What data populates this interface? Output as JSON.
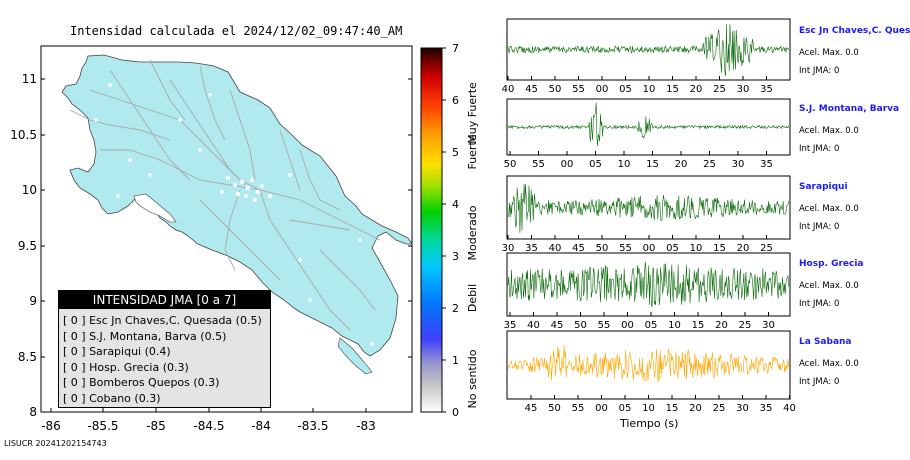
{
  "map": {
    "title": "Intensidad calculada el 2024/12/02_09:47:40_AM",
    "footer": "LISUCR 20241202154743",
    "y_ticks": [
      "11",
      "10.5",
      "10",
      "9.5",
      "9",
      "8.5",
      "8"
    ],
    "x_ticks": [
      "-86",
      "-85.5",
      "-85",
      "-84.5",
      "-84",
      "-83.5",
      "-83"
    ]
  },
  "colorbar": {
    "ticks": [
      "7",
      "6",
      "5",
      "4",
      "3",
      "2",
      "1",
      "0"
    ],
    "category_labels": [
      "Muy Fuerte",
      "Fuerte",
      "Moderado",
      "Debil",
      "No sentido"
    ]
  },
  "legend": {
    "title": "INTENSIDAD JMA [0 a 7]",
    "items": [
      "[ 0 ]  Esc Jn Chaves,C. Quesada (0.5)",
      "[ 0 ]  S.J. Montana, Barva (0.5)",
      "[ 0 ]  Sarapiqui (0.4)",
      "[ 0 ]  Hosp. Grecia (0.3)",
      "[ 0 ]  Bomberos Quepos (0.3)",
      "[ 0 ]  Cobano (0.3)"
    ]
  },
  "colors": {
    "land": "#b0eaee",
    "wave_green": "#0a6b0a",
    "wave_orange": "#ffa500",
    "station_name": "#1a1aff"
  },
  "panels": [
    {
      "station": "Esc Jn Chaves,C. Ques",
      "acel": "Acel. Max. 0.0",
      "int": "Int JMA: 0",
      "ticks": [
        "40",
        "45",
        "50",
        "55",
        "00",
        "05",
        "10",
        "15",
        "20",
        "25",
        "30",
        "35"
      ]
    },
    {
      "station": "S.J. Montana, Barva",
      "acel": "Acel. Max. 0.0",
      "int": "Int JMA: 0",
      "ticks": [
        "50",
        "55",
        "00",
        "05",
        "10",
        "15",
        "20",
        "25",
        "30",
        "35"
      ]
    },
    {
      "station": "Sarapiqui",
      "acel": "Acel. Max. 0.0",
      "int": "Int JMA: 0",
      "ticks": [
        "30",
        "35",
        "40",
        "45",
        "50",
        "55",
        "00",
        "05",
        "10",
        "15",
        "20",
        "25"
      ]
    },
    {
      "station": "Hosp. Grecia",
      "acel": "Acel. Max. 0.0",
      "int": "Int JMA: 0",
      "ticks": [
        "35",
        "40",
        "45",
        "50",
        "55",
        "00",
        "05",
        "10",
        "15",
        "20",
        "25",
        "30"
      ]
    },
    {
      "station": "La Sabana",
      "acel": "Acel. Max. 0.0",
      "int": "Int JMA: 0",
      "ticks": [
        "45",
        "50",
        "55",
        "00",
        "05",
        "10",
        "15",
        "20",
        "25",
        "30",
        "35",
        "40"
      ]
    }
  ],
  "time_axis_label": "Tiempo (s)",
  "chart_data": [
    {
      "type": "heatmap",
      "title": "Intensidad calculada el 2024/12/02_09:47:40_AM",
      "xlabel": "",
      "ylabel": "",
      "xlim": [
        -86.1,
        -82.6
      ],
      "ylim": [
        8,
        11.3
      ],
      "colorbar_range": [
        0,
        7
      ],
      "stations": [
        {
          "name": "Esc Jn Chaves,C. Quesada",
          "intensity": 0.5
        },
        {
          "name": "S.J. Montana, Barva",
          "intensity": 0.5
        },
        {
          "name": "Sarapiqui",
          "intensity": 0.4
        },
        {
          "name": "Hosp. Grecia",
          "intensity": 0.3
        },
        {
          "name": "Bomberos Quepos",
          "intensity": 0.3
        },
        {
          "name": "Cobano",
          "intensity": 0.3
        }
      ]
    },
    {
      "type": "line",
      "title": "",
      "xlabel": "Tiempo (s)",
      "series": [
        {
          "name": "Esc Jn Chaves,C. Ques",
          "acel_max": 0.0,
          "int_jma": 0
        },
        {
          "name": "S.J. Montana, Barva",
          "acel_max": 0.0,
          "int_jma": 0
        },
        {
          "name": "Sarapiqui",
          "acel_max": 0.0,
          "int_jma": 0
        },
        {
          "name": "Hosp. Grecia",
          "acel_max": 0.0,
          "int_jma": 0
        },
        {
          "name": "La Sabana",
          "acel_max": 0.0,
          "int_jma": 0
        }
      ]
    }
  ]
}
